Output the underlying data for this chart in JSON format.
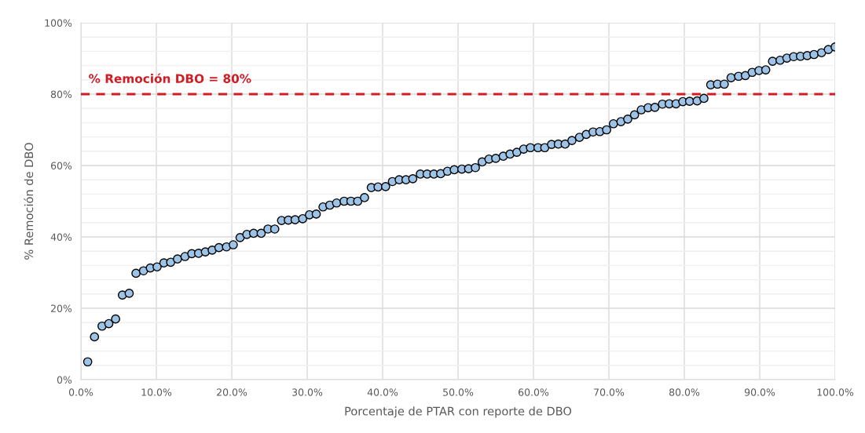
{
  "chart_data": {
    "type": "scatter",
    "xlabel": "Porcentaje de PTAR con reporte de DBO",
    "ylabel": "% Remoción de DBO",
    "x": [
      0.9,
      1.8,
      2.8,
      3.7,
      4.6,
      5.5,
      6.4,
      7.3,
      8.3,
      9.2,
      10.1,
      11.0,
      11.9,
      12.8,
      13.8,
      14.7,
      15.6,
      16.5,
      17.4,
      18.3,
      19.3,
      20.2,
      21.1,
      22.0,
      22.9,
      23.9,
      24.8,
      25.7,
      26.6,
      27.5,
      28.4,
      29.4,
      30.3,
      31.2,
      32.1,
      33.0,
      33.9,
      34.9,
      35.8,
      36.7,
      37.6,
      38.5,
      39.4,
      40.4,
      41.3,
      42.2,
      43.1,
      44.0,
      45.0,
      45.9,
      46.8,
      47.7,
      48.6,
      49.5,
      50.5,
      51.4,
      52.3,
      53.2,
      54.1,
      55.0,
      56.0,
      56.9,
      57.8,
      58.7,
      59.6,
      60.6,
      61.5,
      62.4,
      63.3,
      64.2,
      65.1,
      66.1,
      67.0,
      67.9,
      68.8,
      69.7,
      70.6,
      71.6,
      72.5,
      73.4,
      74.3,
      75.2,
      76.1,
      77.1,
      78.0,
      78.9,
      79.8,
      80.7,
      81.7,
      82.6,
      83.5,
      84.4,
      85.3,
      86.2,
      87.2,
      88.1,
      89.0,
      89.9,
      90.8,
      91.7,
      92.7,
      93.6,
      94.5,
      95.4,
      96.3,
      97.2,
      98.2,
      99.1,
      100.0
    ],
    "series": [
      {
        "color": "#9dc3e6",
        "values": [
          5,
          12,
          15,
          15.7,
          17,
          23.7,
          24.2,
          29.8,
          30.5,
          31.3,
          31.6,
          32.7,
          32.9,
          33.8,
          34.5,
          35.3,
          35.4,
          35.8,
          36.3,
          37.0,
          37.2,
          37.8,
          39.8,
          40.7,
          41.0,
          41.0,
          42.2,
          42.2,
          44.6,
          44.7,
          44.8,
          45.1,
          46.2,
          46.4,
          48.4,
          48.9,
          49.5,
          50.0,
          50.0,
          50.0,
          51.0,
          53.8,
          54.0,
          54.1,
          55.5,
          56.0,
          56.0,
          56.3,
          57.6,
          57.6,
          57.6,
          57.7,
          58.4,
          58.8,
          59.0,
          59.1,
          59.4,
          61.0,
          61.8,
          62.0,
          62.6,
          63.2,
          63.7,
          64.6,
          65.0,
          65.0,
          65.0,
          65.9,
          66.0,
          66.0,
          67.0,
          67.9,
          68.7,
          69.4,
          69.5,
          70.0,
          71.7,
          72.3,
          73.0,
          74.2,
          75.6,
          76.2,
          76.3,
          77.2,
          77.3,
          77.3,
          77.9,
          78.0,
          78.1,
          78.8,
          82.6,
          82.8,
          82.8,
          84.6,
          85.0,
          85.2,
          86.1,
          86.6,
          86.8,
          89.2,
          89.5,
          90.1,
          90.5,
          90.6,
          90.8,
          91.1,
          91.6,
          92.5,
          93.2
        ]
      }
    ],
    "marker": "circle",
    "xlim": [
      0,
      100
    ],
    "xticks": [
      {
        "value": 0,
        "label": "0.0%"
      },
      {
        "value": 10,
        "label": "10.0%"
      },
      {
        "value": 20,
        "label": "20.0%"
      },
      {
        "value": 30,
        "label": "30.0%"
      },
      {
        "value": 40,
        "label": "40.0%"
      },
      {
        "value": 50,
        "label": "50.0%"
      },
      {
        "value": 60,
        "label": "60.0%"
      },
      {
        "value": 70,
        "label": "70.0%"
      },
      {
        "value": 80,
        "label": "80.0%"
      },
      {
        "value": 90,
        "label": "90.0%"
      },
      {
        "value": 100,
        "label": "100.0%"
      }
    ],
    "ylim": [
      0,
      100
    ],
    "yticks": [
      {
        "value": 0,
        "label": "0%"
      },
      {
        "value": 4,
        "label": null
      },
      {
        "value": 8,
        "label": null
      },
      {
        "value": 12,
        "label": null
      },
      {
        "value": 16,
        "label": null
      },
      {
        "value": 20,
        "label": "20%"
      },
      {
        "value": 24,
        "label": null
      },
      {
        "value": 28,
        "label": null
      },
      {
        "value": 32,
        "label": null
      },
      {
        "value": 36,
        "label": null
      },
      {
        "value": 40,
        "label": "40%"
      },
      {
        "value": 44,
        "label": null
      },
      {
        "value": 48,
        "label": null
      },
      {
        "value": 52,
        "label": null
      },
      {
        "value": 56,
        "label": null
      },
      {
        "value": 60,
        "label": "60%"
      },
      {
        "value": 64,
        "label": null
      },
      {
        "value": 68,
        "label": null
      },
      {
        "value": 72,
        "label": null
      },
      {
        "value": 76,
        "label": null
      },
      {
        "value": 80,
        "label": "80%"
      },
      {
        "value": 84,
        "label": null
      },
      {
        "value": 88,
        "label": null
      },
      {
        "value": 92,
        "label": null
      },
      {
        "value": 96,
        "label": null
      },
      {
        "value": 100,
        "label": "100%"
      }
    ],
    "grid": true,
    "ref_lines": [
      {
        "axis": "y",
        "value": 80,
        "label": "% Remoción DBO = 80%",
        "color": "#d01c24",
        "line_style": "dashed"
      }
    ]
  }
}
